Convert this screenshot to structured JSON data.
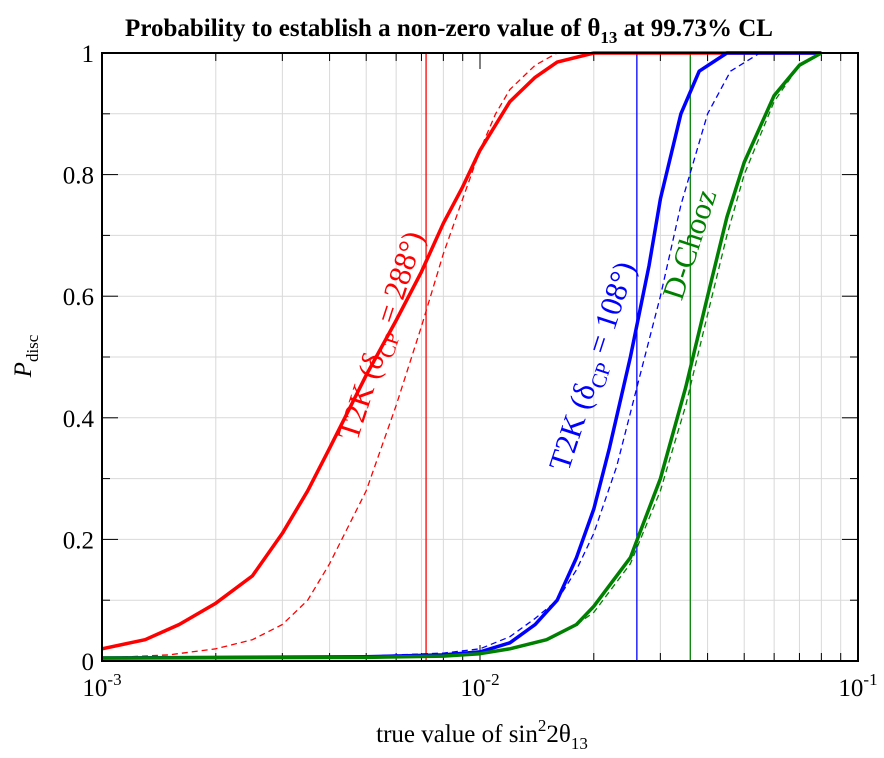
{
  "chart_data": {
    "type": "line",
    "title": "Probability to establish a non-zero value of θ13 at 99.73% CL",
    "title_main": "Probability to establish a non-zero value of θ",
    "title_sub": "13",
    "title_tail": " at 99.73% CL",
    "xlabel": "true value of sin²2θ13",
    "xlabel_main": "true value of sin",
    "xlabel_sup": "2",
    "xlabel_mid": "2θ",
    "xlabel_sub": "13",
    "ylabel": "P_disc",
    "ylabel_main": "P",
    "ylabel_sub": "disc",
    "xscale": "log",
    "xlim": [
      0.001,
      0.1
    ],
    "ylim": [
      0,
      1
    ],
    "grid": true,
    "x_ticks": [
      {
        "base": "10",
        "exp": "-3"
      },
      {
        "base": "10",
        "exp": "-2"
      },
      {
        "base": "10",
        "exp": "-1"
      }
    ],
    "y_ticks": [
      "0",
      "0.2",
      "0.4",
      "0.6",
      "0.8",
      "1"
    ],
    "y_tick_values": [
      0,
      0.2,
      0.4,
      0.6,
      0.8,
      1
    ],
    "series": [
      {
        "color": "#ff0000",
        "style": "solid",
        "points": [
          [
            0.001,
            0.02
          ],
          [
            0.0013,
            0.035
          ],
          [
            0.0016,
            0.06
          ],
          [
            0.002,
            0.095
          ],
          [
            0.0025,
            0.14
          ],
          [
            0.003,
            0.21
          ],
          [
            0.0035,
            0.28
          ],
          [
            0.004,
            0.35
          ],
          [
            0.005,
            0.47
          ],
          [
            0.006,
            0.56
          ],
          [
            0.007,
            0.64
          ],
          [
            0.008,
            0.72
          ],
          [
            0.009,
            0.78
          ],
          [
            0.01,
            0.84
          ],
          [
            0.012,
            0.92
          ],
          [
            0.014,
            0.96
          ],
          [
            0.016,
            0.985
          ],
          [
            0.02,
            1.0
          ],
          [
            0.08,
            1.0
          ]
        ]
      },
      {
        "color": "#ff0000",
        "style": "dashed",
        "points": [
          [
            0.001,
            0.005
          ],
          [
            0.0015,
            0.01
          ],
          [
            0.002,
            0.02
          ],
          [
            0.0025,
            0.035
          ],
          [
            0.003,
            0.06
          ],
          [
            0.0035,
            0.1
          ],
          [
            0.004,
            0.16
          ],
          [
            0.005,
            0.28
          ],
          [
            0.006,
            0.42
          ],
          [
            0.007,
            0.55
          ],
          [
            0.008,
            0.67
          ],
          [
            0.009,
            0.76
          ],
          [
            0.01,
            0.84
          ],
          [
            0.011,
            0.9
          ],
          [
            0.012,
            0.94
          ],
          [
            0.014,
            0.98
          ],
          [
            0.016,
            1.0
          ],
          [
            0.08,
            1.0
          ]
        ]
      },
      {
        "color": "#0000ff",
        "style": "solid",
        "points": [
          [
            0.001,
            0.005
          ],
          [
            0.005,
            0.007
          ],
          [
            0.008,
            0.01
          ],
          [
            0.01,
            0.015
          ],
          [
            0.012,
            0.03
          ],
          [
            0.014,
            0.06
          ],
          [
            0.016,
            0.1
          ],
          [
            0.018,
            0.17
          ],
          [
            0.02,
            0.25
          ],
          [
            0.022,
            0.35
          ],
          [
            0.025,
            0.5
          ],
          [
            0.028,
            0.65
          ],
          [
            0.03,
            0.76
          ],
          [
            0.034,
            0.9
          ],
          [
            0.038,
            0.97
          ],
          [
            0.045,
            1.0
          ],
          [
            0.08,
            1.0
          ]
        ]
      },
      {
        "color": "#0000ff",
        "style": "dashed",
        "points": [
          [
            0.001,
            0.005
          ],
          [
            0.005,
            0.008
          ],
          [
            0.008,
            0.013
          ],
          [
            0.01,
            0.02
          ],
          [
            0.012,
            0.04
          ],
          [
            0.014,
            0.07
          ],
          [
            0.016,
            0.1
          ],
          [
            0.018,
            0.15
          ],
          [
            0.02,
            0.21
          ],
          [
            0.023,
            0.32
          ],
          [
            0.026,
            0.45
          ],
          [
            0.03,
            0.6
          ],
          [
            0.034,
            0.75
          ],
          [
            0.04,
            0.9
          ],
          [
            0.046,
            0.97
          ],
          [
            0.055,
            1.0
          ],
          [
            0.08,
            1.0
          ]
        ]
      },
      {
        "color": "#008000",
        "style": "solid",
        "points": [
          [
            0.001,
            0.005
          ],
          [
            0.005,
            0.006
          ],
          [
            0.008,
            0.008
          ],
          [
            0.01,
            0.012
          ],
          [
            0.012,
            0.02
          ],
          [
            0.015,
            0.035
          ],
          [
            0.018,
            0.06
          ],
          [
            0.02,
            0.09
          ],
          [
            0.025,
            0.17
          ],
          [
            0.03,
            0.3
          ],
          [
            0.035,
            0.45
          ],
          [
            0.04,
            0.6
          ],
          [
            0.045,
            0.73
          ],
          [
            0.05,
            0.82
          ],
          [
            0.06,
            0.93
          ],
          [
            0.07,
            0.98
          ],
          [
            0.08,
            1.0
          ]
        ]
      },
      {
        "color": "#008000",
        "style": "dashed",
        "points": [
          [
            0.001,
            0.005
          ],
          [
            0.005,
            0.006
          ],
          [
            0.008,
            0.008
          ],
          [
            0.01,
            0.012
          ],
          [
            0.012,
            0.02
          ],
          [
            0.015,
            0.035
          ],
          [
            0.018,
            0.06
          ],
          [
            0.02,
            0.08
          ],
          [
            0.025,
            0.16
          ],
          [
            0.03,
            0.28
          ],
          [
            0.035,
            0.42
          ],
          [
            0.04,
            0.57
          ],
          [
            0.045,
            0.7
          ],
          [
            0.05,
            0.8
          ],
          [
            0.06,
            0.92
          ],
          [
            0.07,
            0.98
          ],
          [
            0.08,
            1.0
          ]
        ]
      }
    ],
    "vertical_lines": [
      {
        "x": 0.0072,
        "color": "#ff0000"
      },
      {
        "x": 0.026,
        "color": "#0000ff"
      },
      {
        "x": 0.036,
        "color": "#008000"
      }
    ],
    "annotations": [
      {
        "text": "T2K  (δ",
        "sub": "CP",
        "tail": " = 288°)",
        "color": "#ff0000",
        "x": 0.0058,
        "y": 0.53,
        "angle": -72
      },
      {
        "text": "T2K  (δ",
        "sub": "CP",
        "tail": " = 108°)",
        "color": "#0000ff",
        "x": 0.021,
        "y": 0.48,
        "angle": -72
      },
      {
        "text": "D-Chooz",
        "sub": "",
        "tail": "",
        "color": "#008000",
        "x": 0.038,
        "y": 0.68,
        "angle": -72
      }
    ]
  }
}
